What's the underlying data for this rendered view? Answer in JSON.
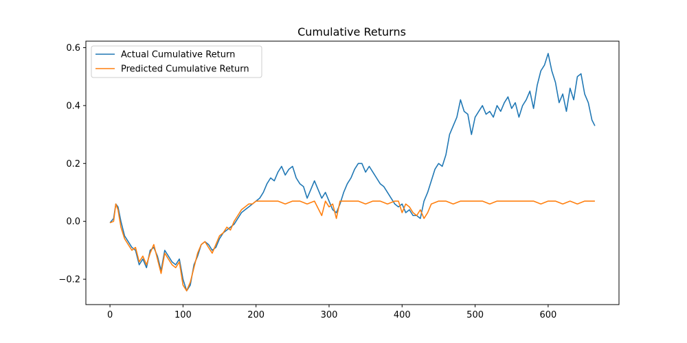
{
  "chart_data": {
    "type": "line",
    "title": "Cumulative Returns",
    "xlabel": "",
    "ylabel": "",
    "xlim": [
      -33,
      697
    ],
    "ylim": [
      -0.2875,
      0.6225
    ],
    "x_ticks": [
      0,
      100,
      200,
      300,
      400,
      500,
      600
    ],
    "y_ticks": [
      -0.2,
      0.0,
      0.2,
      0.4,
      0.6
    ],
    "y_tick_labels": [
      "−0.2",
      "0.0",
      "0.2",
      "0.4",
      "0.6"
    ],
    "grid": false,
    "legend": "upper-left",
    "series": [
      {
        "name": "Actual Cumulative Return",
        "color": "#1f77b4",
        "x": [
          0,
          5,
          8,
          11,
          15,
          20,
          25,
          30,
          35,
          40,
          45,
          50,
          55,
          60,
          65,
          70,
          75,
          80,
          85,
          90,
          95,
          100,
          105,
          110,
          115,
          120,
          125,
          130,
          135,
          140,
          145,
          150,
          155,
          160,
          165,
          170,
          175,
          180,
          185,
          190,
          195,
          200,
          205,
          210,
          215,
          220,
          225,
          230,
          235,
          240,
          245,
          250,
          255,
          260,
          265,
          270,
          275,
          280,
          285,
          290,
          295,
          300,
          305,
          310,
          315,
          320,
          325,
          330,
          335,
          340,
          345,
          350,
          355,
          360,
          365,
          370,
          375,
          380,
          385,
          390,
          395,
          400,
          405,
          410,
          415,
          420,
          425,
          430,
          435,
          440,
          445,
          450,
          455,
          460,
          465,
          470,
          475,
          480,
          485,
          490,
          495,
          500,
          505,
          510,
          515,
          520,
          525,
          530,
          535,
          540,
          545,
          550,
          555,
          560,
          565,
          570,
          575,
          580,
          585,
          590,
          595,
          600,
          605,
          610,
          615,
          620,
          625,
          630,
          635,
          640,
          645,
          650,
          655,
          660,
          664
        ],
        "y": [
          -0.005,
          0.01,
          0.06,
          0.05,
          0.0,
          -0.05,
          -0.07,
          -0.09,
          -0.1,
          -0.15,
          -0.13,
          -0.16,
          -0.1,
          -0.09,
          -0.12,
          -0.17,
          -0.1,
          -0.12,
          -0.14,
          -0.15,
          -0.13,
          -0.2,
          -0.24,
          -0.22,
          -0.15,
          -0.12,
          -0.08,
          -0.07,
          -0.08,
          -0.1,
          -0.09,
          -0.06,
          -0.04,
          -0.03,
          -0.02,
          -0.01,
          0.01,
          0.03,
          0.04,
          0.05,
          0.06,
          0.07,
          0.08,
          0.1,
          0.13,
          0.15,
          0.14,
          0.17,
          0.19,
          0.16,
          0.18,
          0.19,
          0.15,
          0.13,
          0.12,
          0.08,
          0.11,
          0.14,
          0.11,
          0.08,
          0.1,
          0.07,
          0.04,
          0.03,
          0.06,
          0.1,
          0.13,
          0.15,
          0.18,
          0.2,
          0.2,
          0.17,
          0.19,
          0.17,
          0.15,
          0.13,
          0.12,
          0.1,
          0.08,
          0.06,
          0.05,
          0.06,
          0.03,
          0.04,
          0.02,
          0.02,
          0.01,
          0.07,
          0.1,
          0.14,
          0.18,
          0.2,
          0.19,
          0.23,
          0.3,
          0.33,
          0.36,
          0.42,
          0.38,
          0.37,
          0.3,
          0.36,
          0.38,
          0.4,
          0.37,
          0.38,
          0.36,
          0.4,
          0.38,
          0.41,
          0.43,
          0.39,
          0.41,
          0.36,
          0.4,
          0.42,
          0.45,
          0.39,
          0.47,
          0.52,
          0.54,
          0.58,
          0.52,
          0.48,
          0.41,
          0.44,
          0.38,
          0.46,
          0.42,
          0.5,
          0.51,
          0.44,
          0.41,
          0.35,
          0.33
        ]
      },
      {
        "name": "Predicted Cumulative Return",
        "color": "#ff7f0e",
        "x": [
          0,
          5,
          8,
          11,
          15,
          20,
          25,
          30,
          35,
          40,
          45,
          50,
          55,
          60,
          65,
          70,
          75,
          80,
          85,
          90,
          95,
          100,
          105,
          110,
          115,
          120,
          125,
          130,
          135,
          140,
          145,
          150,
          155,
          160,
          165,
          170,
          175,
          180,
          185,
          190,
          195,
          200,
          205,
          210,
          220,
          230,
          240,
          250,
          260,
          270,
          280,
          290,
          295,
          300,
          305,
          310,
          315,
          320,
          330,
          340,
          350,
          360,
          370,
          380,
          390,
          395,
          400,
          405,
          410,
          415,
          420,
          425,
          430,
          435,
          440,
          450,
          460,
          470,
          480,
          490,
          500,
          510,
          520,
          530,
          540,
          550,
          560,
          570,
          580,
          590,
          600,
          610,
          620,
          630,
          640,
          650,
          660,
          664
        ],
        "y": [
          -0.005,
          0.0,
          0.06,
          0.04,
          -0.02,
          -0.06,
          -0.08,
          -0.1,
          -0.09,
          -0.14,
          -0.12,
          -0.15,
          -0.11,
          -0.08,
          -0.13,
          -0.18,
          -0.11,
          -0.13,
          -0.15,
          -0.16,
          -0.14,
          -0.22,
          -0.24,
          -0.21,
          -0.16,
          -0.11,
          -0.08,
          -0.07,
          -0.09,
          -0.11,
          -0.08,
          -0.05,
          -0.04,
          -0.02,
          -0.03,
          0.0,
          0.02,
          0.04,
          0.05,
          0.06,
          0.06,
          0.07,
          0.07,
          0.07,
          0.07,
          0.07,
          0.06,
          0.07,
          0.07,
          0.06,
          0.07,
          0.02,
          0.07,
          0.05,
          0.06,
          0.01,
          0.07,
          0.07,
          0.07,
          0.07,
          0.06,
          0.07,
          0.07,
          0.06,
          0.07,
          0.07,
          0.03,
          0.06,
          0.05,
          0.03,
          0.02,
          0.04,
          0.01,
          0.03,
          0.06,
          0.07,
          0.07,
          0.06,
          0.07,
          0.07,
          0.07,
          0.07,
          0.06,
          0.07,
          0.07,
          0.07,
          0.07,
          0.07,
          0.07,
          0.06,
          0.07,
          0.07,
          0.06,
          0.07,
          0.06,
          0.07,
          0.07,
          0.07
        ]
      }
    ]
  }
}
